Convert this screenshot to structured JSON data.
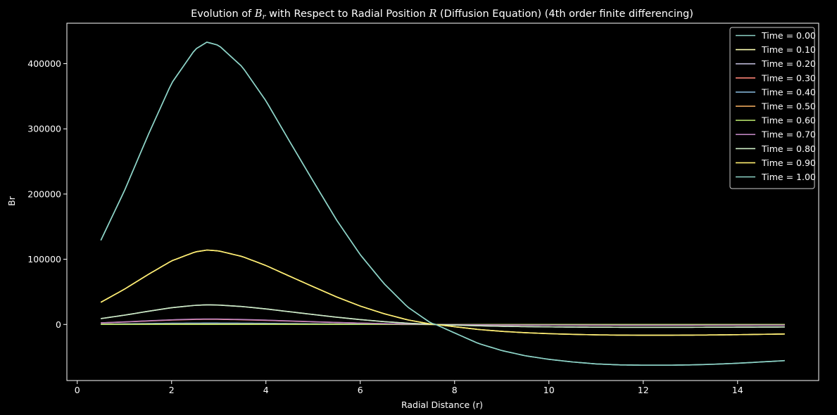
{
  "chart_data": {
    "type": "line",
    "title": "Evolution of Bᵣ with Respect to Radial Position R (Diffusion Equation) (4th order finite differencing)",
    "title_parts": {
      "prefix": "Evolution of ",
      "sym_b": "B",
      "sym_sub": "r",
      "middle": " with Respect to Radial Position ",
      "sym_r": "R",
      "suffix": " (Diffusion Equation) (4th order finite differencing)"
    },
    "xlabel": "Radial Distance (r)",
    "ylabel": "Br",
    "xlim": [
      -0.22,
      15.72
    ],
    "ylim": [
      -86000,
      462000
    ],
    "xticks": [
      0,
      2,
      4,
      6,
      8,
      10,
      12,
      14
    ],
    "yticks": [
      0,
      100000,
      200000,
      300000,
      400000
    ],
    "background": "#000000",
    "grid": false,
    "legend_position": "upper right",
    "series": [
      {
        "name": "Time = 0.00",
        "color": "#8dd3c7",
        "amplitude": 1.0
      },
      {
        "name": "Time = 0.10",
        "color": "#feffb3",
        "amplitude": 0.2636
      },
      {
        "name": "Time = 0.20",
        "color": "#bfbbd9",
        "amplitude": 0.0695
      },
      {
        "name": "Time = 0.30",
        "color": "#fa8174",
        "amplitude": 0.0183
      },
      {
        "name": "Time = 0.40",
        "color": "#81b1d2",
        "amplitude": 0.00483
      },
      {
        "name": "Time = 0.50",
        "color": "#fdb462",
        "amplitude": 0.00127
      },
      {
        "name": "Time = 0.60",
        "color": "#b3de69",
        "amplitude": 0.000336
      },
      {
        "name": "Time = 0.70",
        "color": "#bc82bd",
        "amplitude": 0.0193
      },
      {
        "name": "Time = 0.80",
        "color": "#ccebc4",
        "amplitude": 0.0695
      },
      {
        "name": "Time = 0.90",
        "color": "#ffed6f",
        "amplitude": 0.2636
      },
      {
        "name": "Time = 1.00",
        "color": "#8dd3c7",
        "amplitude": 1.0
      }
    ],
    "profile": {
      "x": [
        0.5,
        1.0,
        1.5,
        2.0,
        2.5,
        2.75,
        3.0,
        3.5,
        4.0,
        4.5,
        5.0,
        5.5,
        6.0,
        6.5,
        7.0,
        7.5,
        7.6,
        8.0,
        8.5,
        9.0,
        9.5,
        10.0,
        10.5,
        11.0,
        11.5,
        12.0,
        12.5,
        13.0,
        13.5,
        14.0,
        14.5,
        15.0
      ],
      "y": [
        129000,
        205000,
        290000,
        370000,
        422000,
        433000,
        428000,
        395000,
        343000,
        281000,
        220000,
        160000,
        107000,
        63000,
        27000,
        2000,
        0,
        -13000,
        -29000,
        -40000,
        -48000,
        -53500,
        -57500,
        -60500,
        -62000,
        -62500,
        -62500,
        -62000,
        -61000,
        -59500,
        -57500,
        -55500
      ]
    }
  }
}
